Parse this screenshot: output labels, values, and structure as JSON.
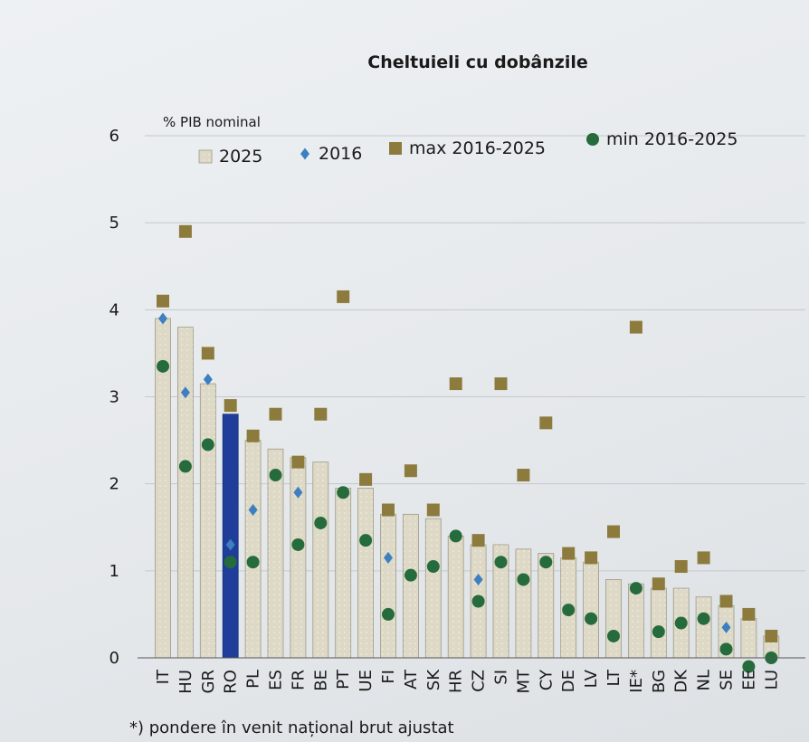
{
  "chart_data": {
    "type": "bar",
    "title": "Cheltuieli cu dobânzile",
    "ylabel": "% PIB nominal",
    "ylim": [
      0,
      6
    ],
    "yticks": [
      "0",
      "1",
      "2",
      "3",
      "4",
      "5",
      "6"
    ],
    "grid": true,
    "legend_position": "top",
    "categories": [
      "IT",
      "HU",
      "GR",
      "RO",
      "PL",
      "ES",
      "FR",
      "BE",
      "PT",
      "UE",
      "FI",
      "AT",
      "SK",
      "HR",
      "CZ",
      "SI",
      "MT",
      "CY",
      "DE",
      "LV",
      "LT",
      "IE*",
      "BG",
      "DK",
      "NL",
      "SE",
      "EE",
      "LU"
    ],
    "highlight_category": "RO",
    "series": [
      {
        "name": "2025",
        "kind": "bar",
        "color": "#ddd9c6",
        "values": [
          3.9,
          3.8,
          3.15,
          2.8,
          2.5,
          2.4,
          2.3,
          2.25,
          1.95,
          1.95,
          1.65,
          1.65,
          1.6,
          1.4,
          1.3,
          1.3,
          1.25,
          1.2,
          1.15,
          1.1,
          0.9,
          0.85,
          0.8,
          0.8,
          0.7,
          0.6,
          0.45,
          0.25
        ]
      },
      {
        "name": "2016",
        "kind": "marker",
        "shape": "diamond",
        "color": "#3d7fc0",
        "values": [
          3.9,
          3.05,
          3.2,
          1.3,
          1.7,
          null,
          1.9,
          null,
          null,
          null,
          1.15,
          null,
          null,
          null,
          0.9,
          null,
          null,
          null,
          null,
          null,
          null,
          null,
          null,
          null,
          null,
          0.35,
          null,
          null
        ]
      },
      {
        "name": "max 2016-2025",
        "kind": "marker",
        "shape": "square",
        "color": "#8c7b3c",
        "values": [
          4.1,
          4.9,
          3.5,
          2.9,
          2.55,
          2.8,
          2.25,
          2.8,
          4.15,
          2.05,
          1.7,
          2.15,
          1.7,
          3.15,
          1.35,
          3.15,
          2.1,
          2.7,
          1.2,
          1.15,
          1.45,
          3.8,
          0.85,
          1.05,
          1.15,
          0.65,
          0.5,
          0.25
        ]
      },
      {
        "name": "min 2016-2025",
        "kind": "marker",
        "shape": "circle",
        "color": "#256b3c",
        "values": [
          3.35,
          2.2,
          2.45,
          1.1,
          1.1,
          2.1,
          1.3,
          1.55,
          1.9,
          1.35,
          0.5,
          0.95,
          1.05,
          1.4,
          0.65,
          1.1,
          0.9,
          1.1,
          0.55,
          0.45,
          0.25,
          0.8,
          0.3,
          0.4,
          0.45,
          0.1,
          -0.1,
          0.0
        ]
      }
    ],
    "footnote": "*) pondere în venit național brut ajustat"
  }
}
